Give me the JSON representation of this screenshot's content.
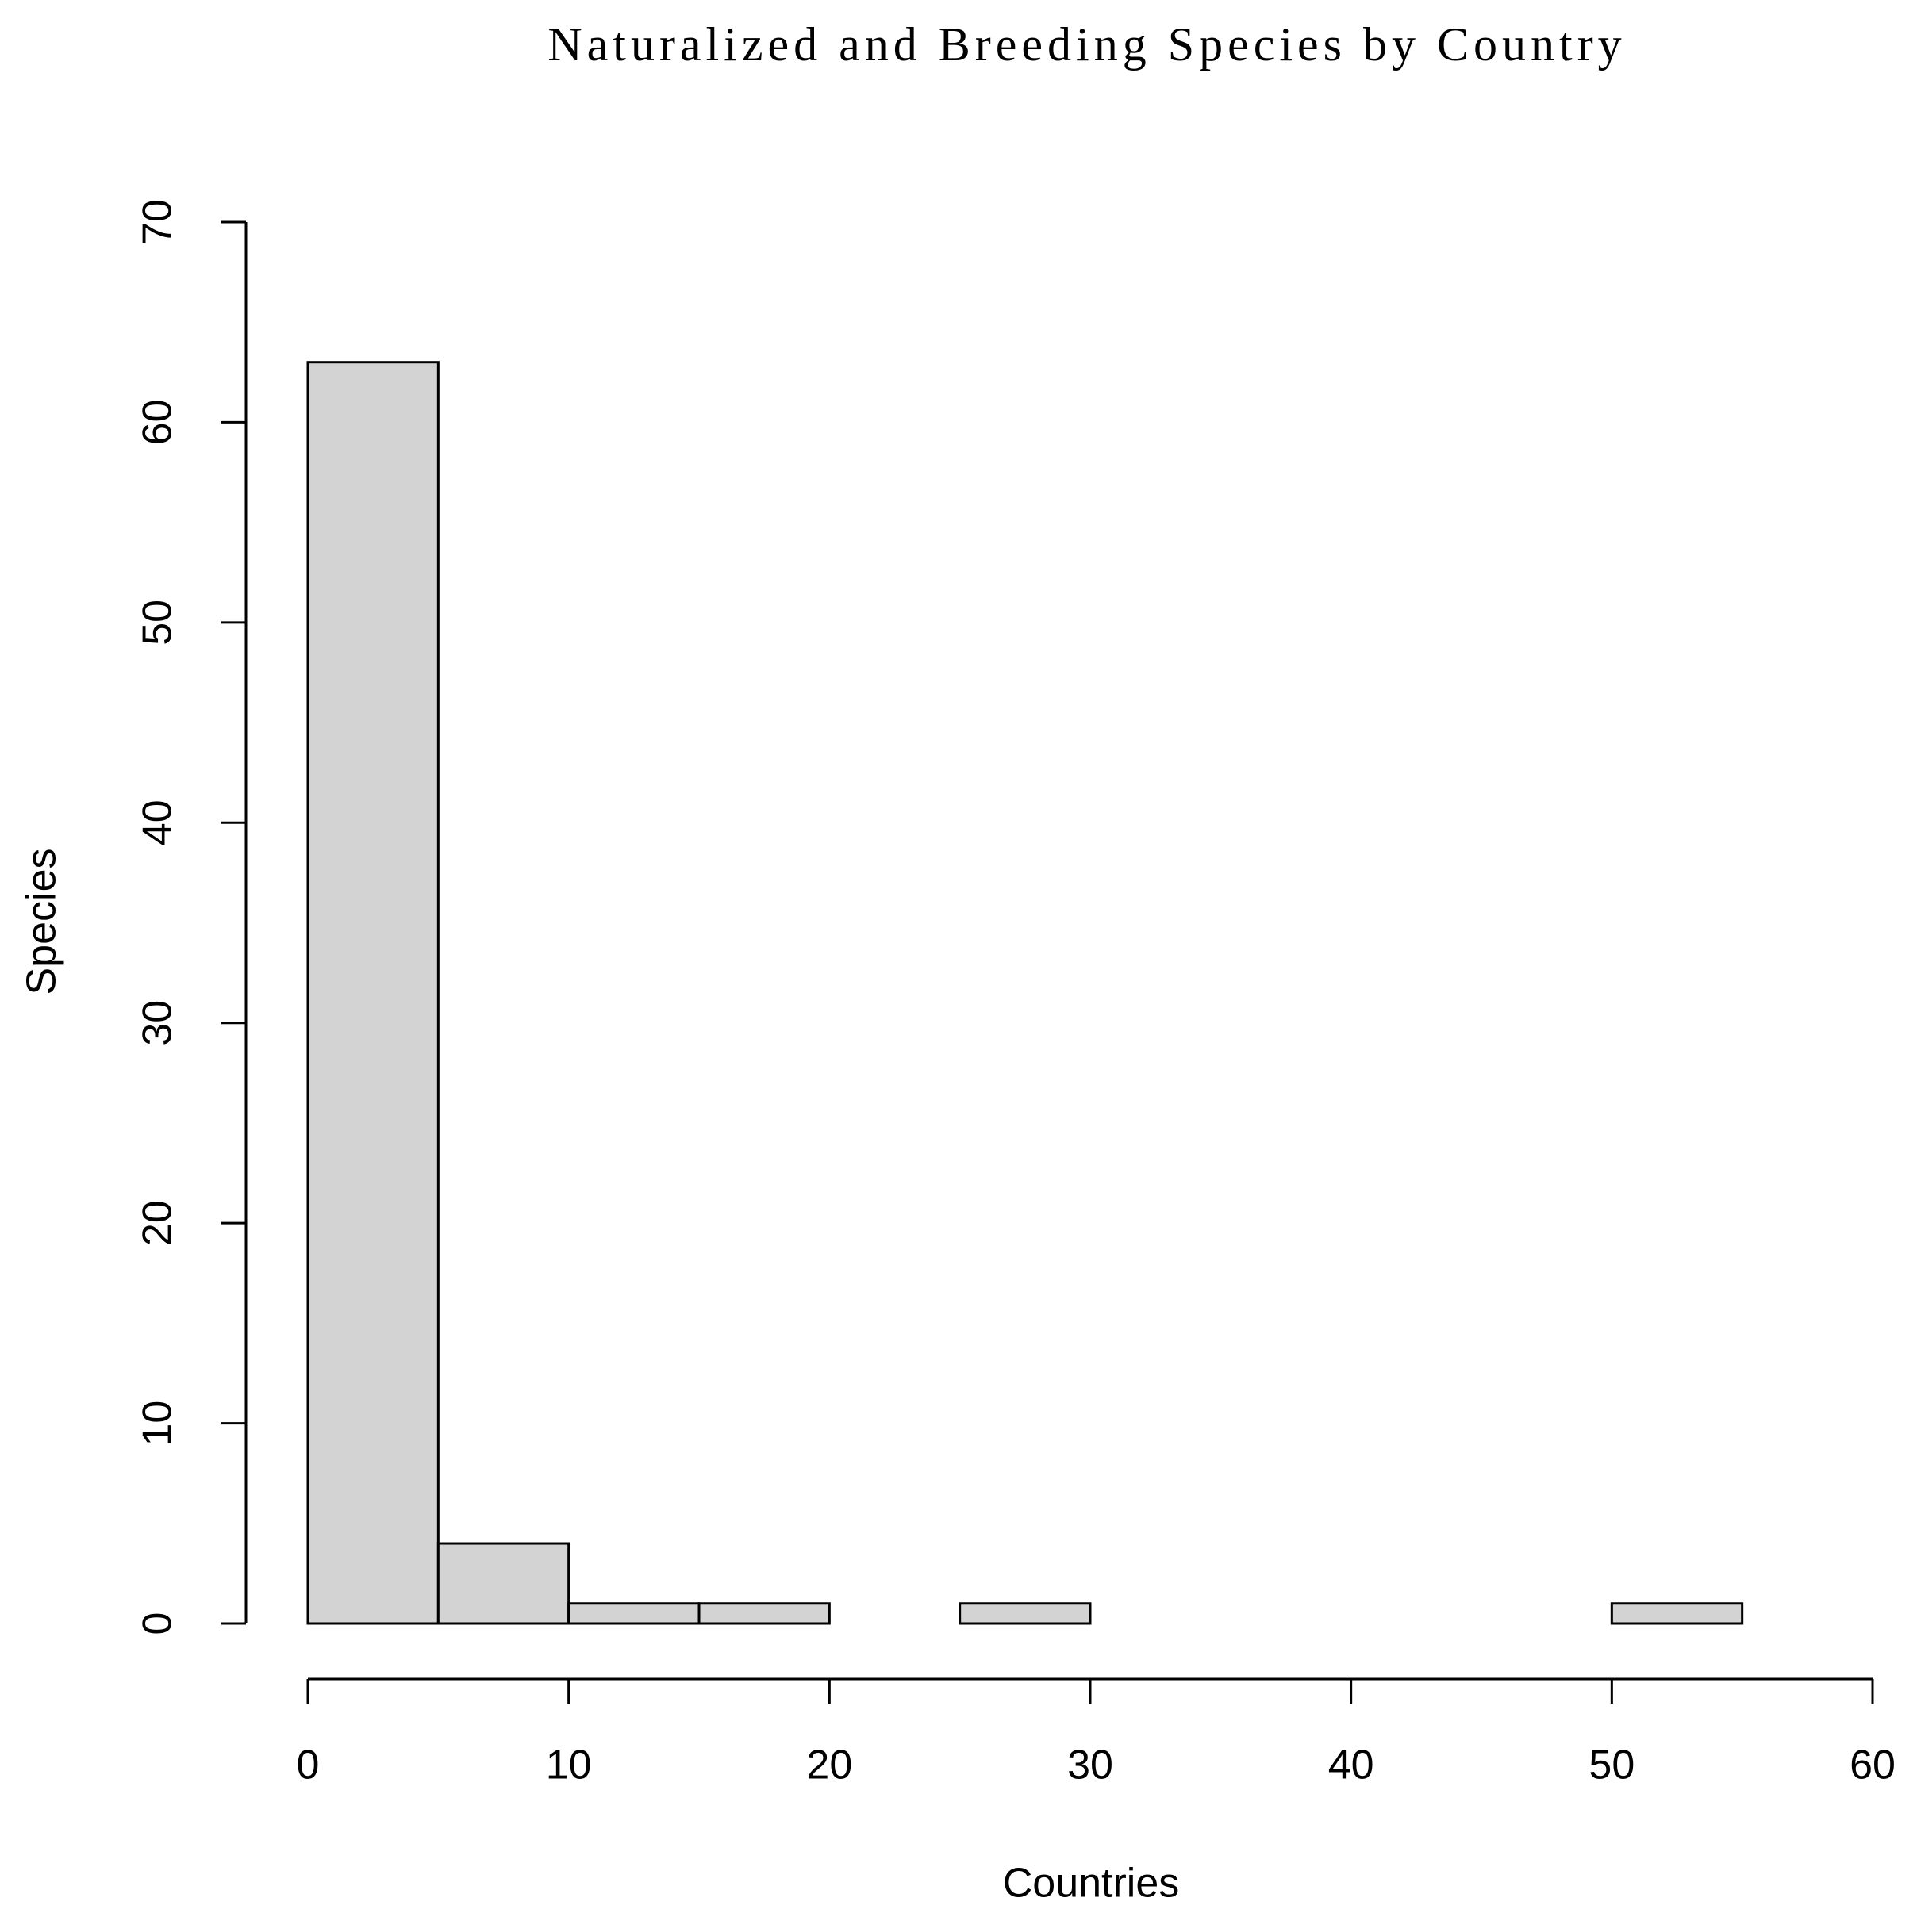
{
  "chart_data": {
    "type": "histogram",
    "title": "Naturalized and Breeding Species by Country",
    "xlabel": "Countries",
    "ylabel": "Species",
    "bins": [
      0,
      5,
      10,
      15,
      20,
      25,
      30,
      35,
      40,
      45,
      50,
      55,
      60
    ],
    "counts": [
      63,
      4,
      1,
      1,
      0,
      1,
      0,
      0,
      0,
      0,
      1,
      0
    ],
    "color": "#d3d3d3",
    "edgecolor": "#000000",
    "xlim": [
      0,
      60
    ],
    "xticks": [
      0,
      10,
      20,
      30,
      40,
      50,
      60
    ],
    "ylim": [
      0,
      70
    ],
    "yticks": [
      0,
      10,
      20,
      30,
      40,
      50,
      60,
      70
    ],
    "grid": false
  }
}
